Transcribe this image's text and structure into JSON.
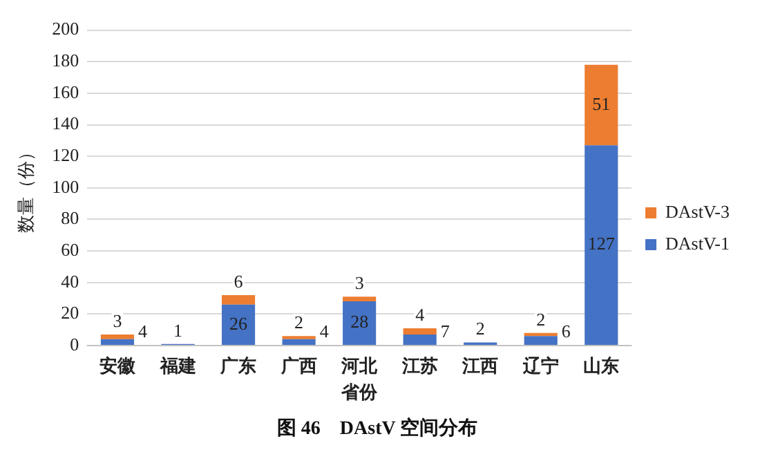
{
  "chart_data": {
    "type": "bar",
    "title": "图 46　DAstV 空间分布",
    "xlabel": "省份",
    "ylabel": "数量（份）",
    "categories": [
      "安徽",
      "福建",
      "广东",
      "广西",
      "河北",
      "江苏",
      "江西",
      "辽宁",
      "山东"
    ],
    "series": [
      {
        "name": "DAstV-1",
        "color": "#4472c4",
        "values": [
          4,
          1,
          26,
          4,
          28,
          7,
          2,
          6,
          127
        ]
      },
      {
        "name": "DAstV-3",
        "color": "#ed7d31",
        "values": [
          3,
          null,
          6,
          2,
          3,
          4,
          null,
          2,
          51
        ]
      }
    ],
    "stacked": true,
    "ylim": [
      0,
      200
    ],
    "yticks": [
      0,
      20,
      40,
      60,
      80,
      100,
      120,
      140,
      160,
      180,
      200
    ],
    "grid": "y",
    "legend": "right",
    "data_labels": true
  }
}
